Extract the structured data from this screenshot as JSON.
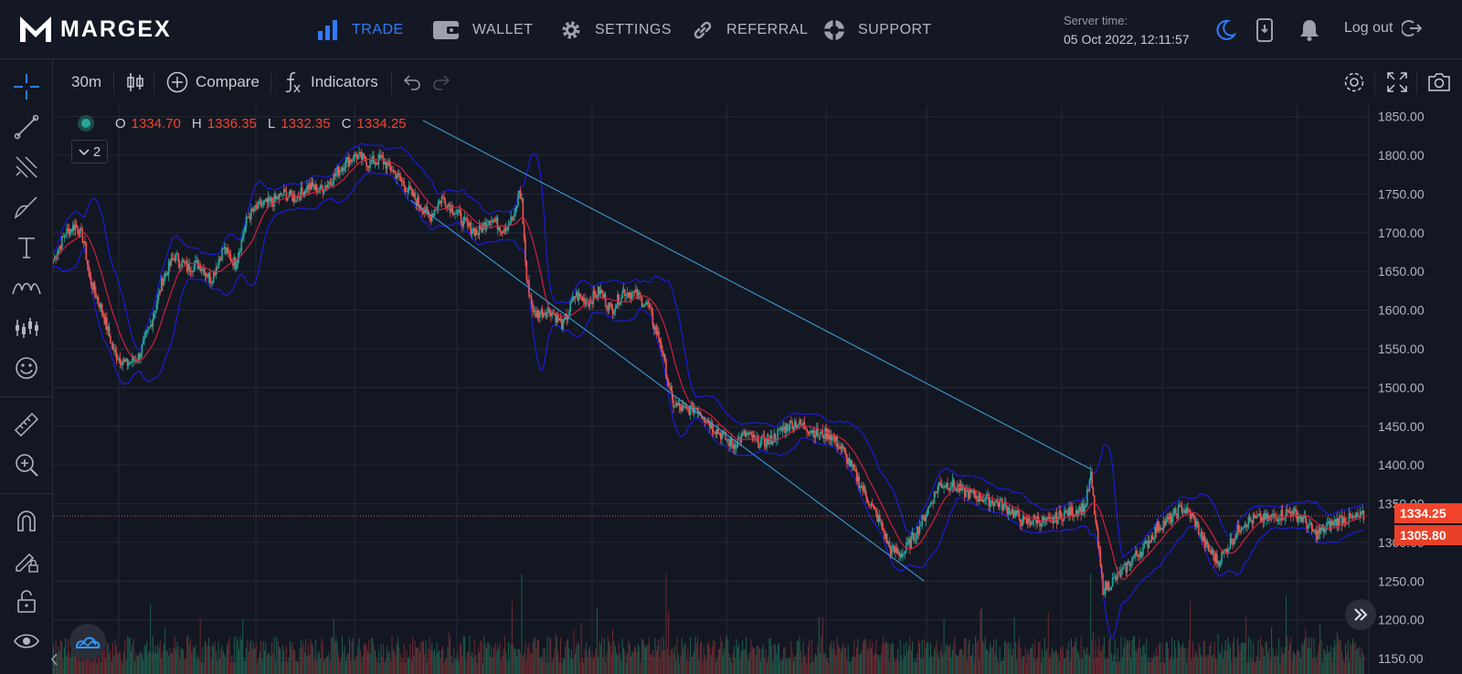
{
  "brand": {
    "name": "MARGEX"
  },
  "nav": {
    "items": [
      {
        "label": "TRADE",
        "icon": "bar-chart-icon",
        "active": true
      },
      {
        "label": "WALLET",
        "icon": "wallet-icon",
        "active": false
      },
      {
        "label": "SETTINGS",
        "icon": "gear-icon",
        "active": false
      },
      {
        "label": "REFERRAL",
        "icon": "link-icon",
        "active": false
      },
      {
        "label": "SUPPORT",
        "icon": "lifebuoy-icon",
        "active": false
      }
    ],
    "server_time_label": "Server time:",
    "server_time_value": "05 Oct 2022, 12:11:57",
    "logout_label": "Log out"
  },
  "colors": {
    "accent": "#2f7bff",
    "up": "#26a69a",
    "down": "#ef5350",
    "ma": "#d21f3c",
    "bands": "#1c1cd6",
    "channel": "#3fa7ea",
    "price_tag": "#f0452c"
  },
  "toolbar": {
    "interval": "30m",
    "compare_label": "Compare",
    "indicators_label": "Indicators"
  },
  "ohlc": {
    "o_label": "O",
    "o": "1334.70",
    "h_label": "H",
    "h": "1336.35",
    "l_label": "L",
    "l": "1332.35",
    "c_label": "C",
    "c": "1334.25"
  },
  "legend_toggle_count": "2",
  "price_tags": {
    "last": "1334.25",
    "second": "1305.80"
  },
  "chart_data": {
    "type": "candlestick",
    "y_ticks": [
      "1850.00",
      "1800.00",
      "1750.00",
      "1700.00",
      "1650.00",
      "1600.00",
      "1550.00",
      "1500.00",
      "1450.00",
      "1400.00",
      "1350.00",
      "1300.00",
      "1250.00",
      "1200.00",
      "1150.00"
    ],
    "ylim": [
      1130,
      1865
    ],
    "last_price": 1334.25,
    "grid": true,
    "anchors": [
      [
        0,
        1665
      ],
      [
        10,
        1700
      ],
      [
        18,
        1710
      ],
      [
        25,
        1690
      ],
      [
        30,
        1640
      ],
      [
        40,
        1600
      ],
      [
        50,
        1545
      ],
      [
        60,
        1530
      ],
      [
        70,
        1540
      ],
      [
        80,
        1580
      ],
      [
        90,
        1640
      ],
      [
        100,
        1670
      ],
      [
        110,
        1655
      ],
      [
        120,
        1660
      ],
      [
        130,
        1640
      ],
      [
        140,
        1680
      ],
      [
        150,
        1660
      ],
      [
        160,
        1720
      ],
      [
        170,
        1735
      ],
      [
        180,
        1740
      ],
      [
        190,
        1750
      ],
      [
        200,
        1745
      ],
      [
        210,
        1760
      ],
      [
        220,
        1755
      ],
      [
        230,
        1770
      ],
      [
        240,
        1790
      ],
      [
        250,
        1800
      ],
      [
        260,
        1790
      ],
      [
        270,
        1795
      ],
      [
        280,
        1780
      ],
      [
        290,
        1760
      ],
      [
        300,
        1740
      ],
      [
        310,
        1720
      ],
      [
        320,
        1745
      ],
      [
        330,
        1730
      ],
      [
        340,
        1710
      ],
      [
        350,
        1700
      ],
      [
        360,
        1720
      ],
      [
        370,
        1705
      ],
      [
        380,
        1720
      ],
      [
        384,
        1755
      ],
      [
        386,
        1740
      ],
      [
        390,
        1640
      ],
      [
        396,
        1595
      ],
      [
        410,
        1600
      ],
      [
        420,
        1580
      ],
      [
        430,
        1620
      ],
      [
        440,
        1610
      ],
      [
        450,
        1625
      ],
      [
        460,
        1600
      ],
      [
        470,
        1625
      ],
      [
        480,
        1620
      ],
      [
        490,
        1605
      ],
      [
        495,
        1580
      ],
      [
        500,
        1560
      ],
      [
        505,
        1520
      ],
      [
        510,
        1480
      ],
      [
        520,
        1470
      ],
      [
        530,
        1475
      ],
      [
        540,
        1455
      ],
      [
        550,
        1440
      ],
      [
        560,
        1425
      ],
      [
        570,
        1440
      ],
      [
        580,
        1430
      ],
      [
        590,
        1430
      ],
      [
        600,
        1445
      ],
      [
        610,
        1455
      ],
      [
        620,
        1450
      ],
      [
        630,
        1440
      ],
      [
        640,
        1440
      ],
      [
        650,
        1420
      ],
      [
        660,
        1390
      ],
      [
        670,
        1360
      ],
      [
        680,
        1330
      ],
      [
        690,
        1290
      ],
      [
        700,
        1285
      ],
      [
        710,
        1310
      ],
      [
        720,
        1340
      ],
      [
        730,
        1375
      ],
      [
        740,
        1375
      ],
      [
        750,
        1365
      ],
      [
        760,
        1360
      ],
      [
        770,
        1355
      ],
      [
        780,
        1350
      ],
      [
        790,
        1340
      ],
      [
        800,
        1325
      ],
      [
        810,
        1330
      ],
      [
        820,
        1325
      ],
      [
        830,
        1335
      ],
      [
        840,
        1340
      ],
      [
        850,
        1345
      ],
      [
        855,
        1385
      ],
      [
        860,
        1310
      ],
      [
        865,
        1240
      ],
      [
        870,
        1245
      ],
      [
        880,
        1260
      ],
      [
        890,
        1280
      ],
      [
        900,
        1295
      ],
      [
        910,
        1320
      ],
      [
        920,
        1330
      ],
      [
        930,
        1345
      ],
      [
        940,
        1330
      ],
      [
        950,
        1295
      ],
      [
        960,
        1275
      ],
      [
        970,
        1300
      ],
      [
        980,
        1325
      ],
      [
        990,
        1330
      ],
      [
        1000,
        1330
      ],
      [
        1010,
        1335
      ],
      [
        1020,
        1340
      ],
      [
        1030,
        1330
      ],
      [
        1040,
        1310
      ],
      [
        1050,
        1320
      ],
      [
        1060,
        1330
      ],
      [
        1070,
        1330
      ],
      [
        1080,
        1334
      ]
    ],
    "channel_lines": [
      {
        "from": [
          1742,
          295
        ],
        "to": [
          1250,
          718
        ]
      },
      {
        "from": [
          1845,
          305
        ],
        "to": [
          1395,
          855
        ]
      }
    ]
  }
}
